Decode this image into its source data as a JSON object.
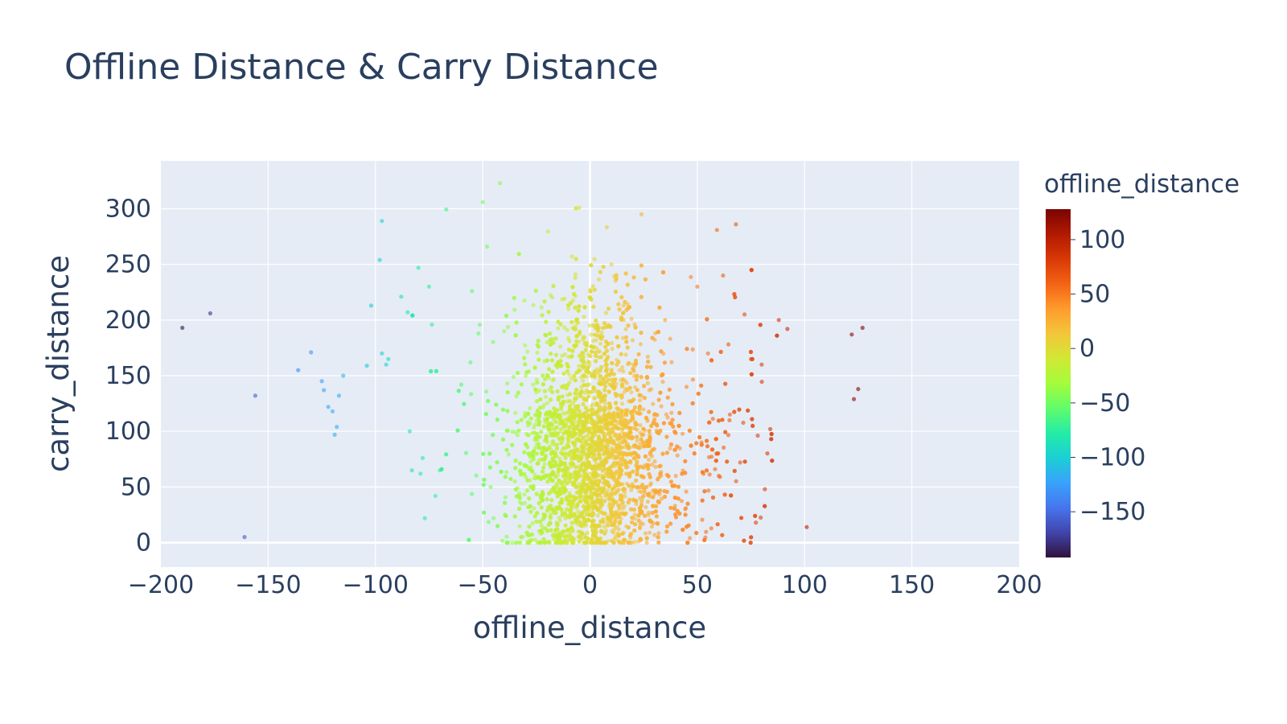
{
  "chart_data": {
    "type": "scatter",
    "title": "Offline Distance & Carry Distance",
    "xlabel": "offline_distance",
    "ylabel": "carry_distance",
    "xlim": [
      -200,
      200
    ],
    "ylim": [
      -22,
      343
    ],
    "x_ticks": [
      -200,
      -150,
      -100,
      -50,
      0,
      50,
      100,
      150,
      200
    ],
    "x_tick_labels": [
      "−200",
      "−150",
      "−100",
      "−50",
      "0",
      "50",
      "100",
      "150",
      "200"
    ],
    "y_ticks": [
      0,
      50,
      100,
      150,
      200,
      250,
      300
    ],
    "y_tick_labels": [
      "0",
      "50",
      "100",
      "150",
      "200",
      "250",
      "300"
    ],
    "grid": true,
    "colorbar": {
      "title": "offline_distance",
      "range": [
        -192,
        128
      ],
      "ticks": [
        100,
        50,
        0,
        -50,
        -100,
        -150
      ],
      "tick_labels": [
        "100",
        "50",
        "0",
        "−50",
        "−100",
        "−150"
      ],
      "colorscale": [
        "#30123b",
        "#4145ab",
        "#4675ed",
        "#39a2fc",
        "#1bcfd4",
        "#24eca6",
        "#61fc6c",
        "#a4fc3b",
        "#d1e834",
        "#f3c63a",
        "#fe9b2d",
        "#f36315",
        "#d93806",
        "#b11901",
        "#7a0402"
      ]
    },
    "sample_points": {
      "x": [
        -190,
        -177,
        -161,
        -156,
        -136,
        -130,
        -125,
        -124,
        -122,
        -120,
        -119,
        -118,
        -117,
        -115,
        -104,
        -102,
        -98,
        -97,
        -97,
        -95,
        -94,
        -88,
        -85,
        -84,
        -83,
        -80,
        -79,
        -78,
        -77,
        -75,
        -72,
        -70,
        -60,
        -55,
        -52,
        -50,
        -48,
        -45,
        -42,
        -40,
        -35,
        -30,
        -25,
        -20,
        -15,
        -10,
        -5,
        0,
        5,
        10,
        15,
        20,
        24,
        30,
        35,
        40,
        45,
        50,
        52,
        55,
        60,
        62,
        65,
        68,
        70,
        72,
        75,
        80,
        84,
        88,
        92,
        101,
        122,
        123,
        125,
        127
      ],
      "y": [
        193,
        206,
        5,
        132,
        155,
        171,
        145,
        137,
        122,
        118,
        97,
        104,
        132,
        150,
        159,
        213,
        254,
        289,
        170,
        160,
        165,
        221,
        207,
        100,
        65,
        247,
        62,
        76,
        22,
        230,
        42,
        65,
        142,
        226,
        188,
        306,
        266,
        22,
        323,
        190,
        55,
        150,
        135,
        180,
        95,
        210,
        301,
        40,
        120,
        250,
        80,
        160,
        295,
        110,
        200,
        60,
        140,
        230,
        90,
        170,
        60,
        240,
        110,
        286,
        72,
        205,
        165,
        160,
        102,
        200,
        192,
        14,
        187,
        129,
        138,
        193
      ]
    }
  }
}
